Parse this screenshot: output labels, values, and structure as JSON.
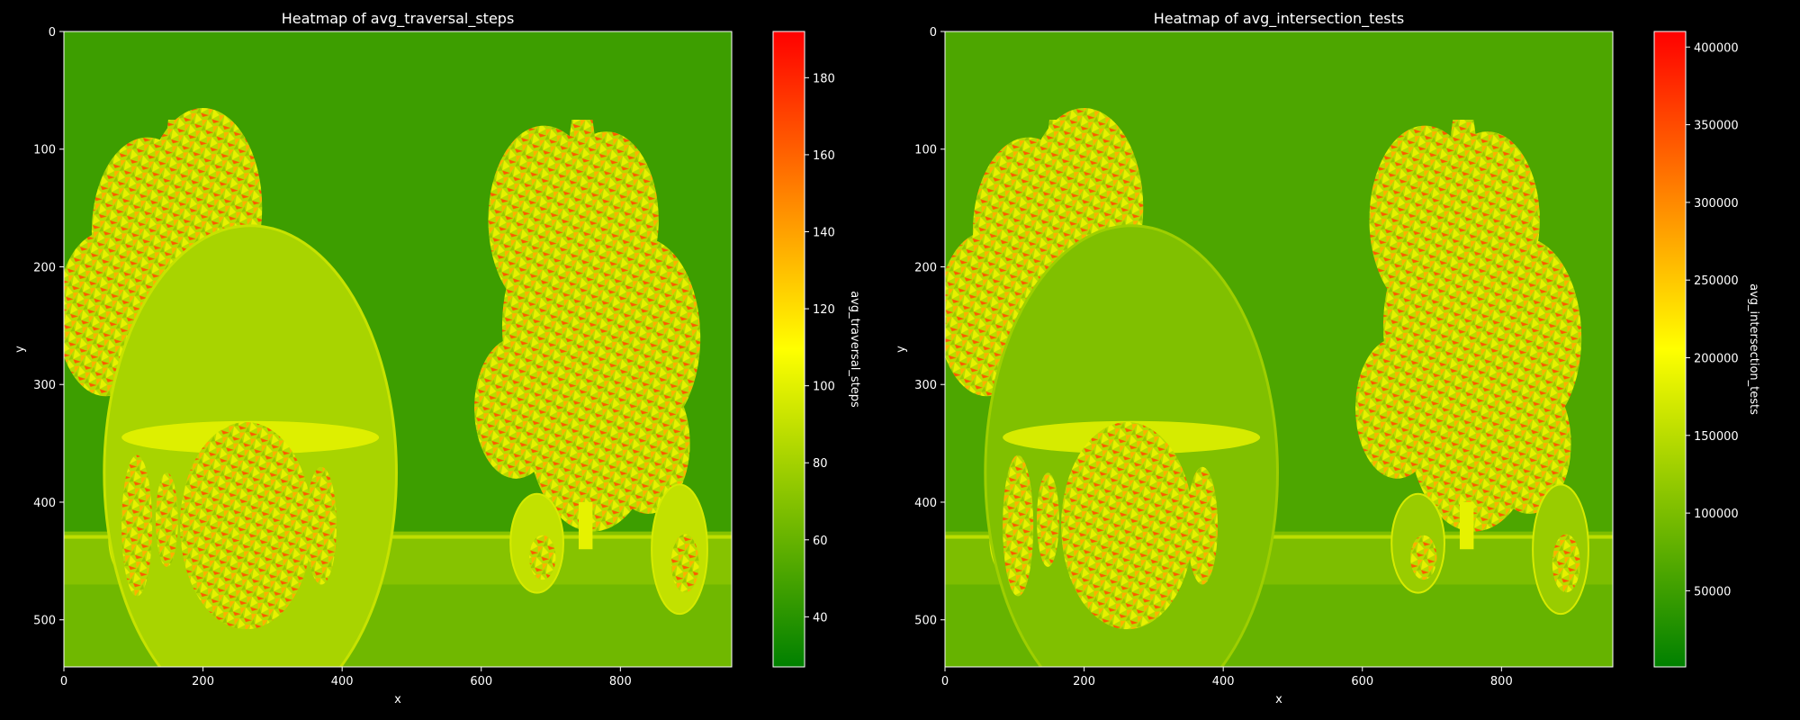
{
  "colors": {
    "background": "#000000",
    "colormap": [
      "#008000",
      "#ffff00",
      "#ff0000"
    ],
    "axis": "#ffffff"
  },
  "chart_data": [
    {
      "type": "heatmap",
      "title": "Heatmap of avg_traversal_steps",
      "xlabel": "x",
      "ylabel": "y",
      "xlim": [
        0,
        960
      ],
      "ylim": [
        540,
        0
      ],
      "xticks": [
        "0",
        "200",
        "400",
        "600",
        "800"
      ],
      "yticks": [
        "0",
        "100",
        "200",
        "300",
        "400",
        "500"
      ],
      "colorbar": {
        "label": "avg_traversal_steps",
        "range": [
          27,
          192
        ],
        "ticks": [
          "40",
          "60",
          "80",
          "100",
          "120",
          "140",
          "160",
          "180"
        ]
      },
      "scene": {
        "background_level": 0.12,
        "floor_level": 0.22,
        "large_sphere_level": 0.33,
        "foliage_level": 0.55,
        "grid": false
      }
    },
    {
      "type": "heatmap",
      "title": "Heatmap of avg_intersection_tests",
      "xlabel": "x",
      "ylabel": "y",
      "xlim": [
        0,
        960
      ],
      "ylim": [
        540,
        0
      ],
      "xticks": [
        "0",
        "200",
        "400",
        "600",
        "800"
      ],
      "yticks": [
        "0",
        "100",
        "200",
        "300",
        "400",
        "500"
      ],
      "colorbar": {
        "label": "avg_intersection_tests",
        "range": [
          1000,
          410000
        ],
        "ticks": [
          "50000",
          "100000",
          "150000",
          "200000",
          "250000",
          "300000",
          "350000",
          "400000"
        ]
      },
      "scene": {
        "background_level": 0.15,
        "floor_level": 0.2,
        "large_sphere_level": 0.25,
        "foliage_level": 0.55,
        "grid": false
      }
    }
  ]
}
